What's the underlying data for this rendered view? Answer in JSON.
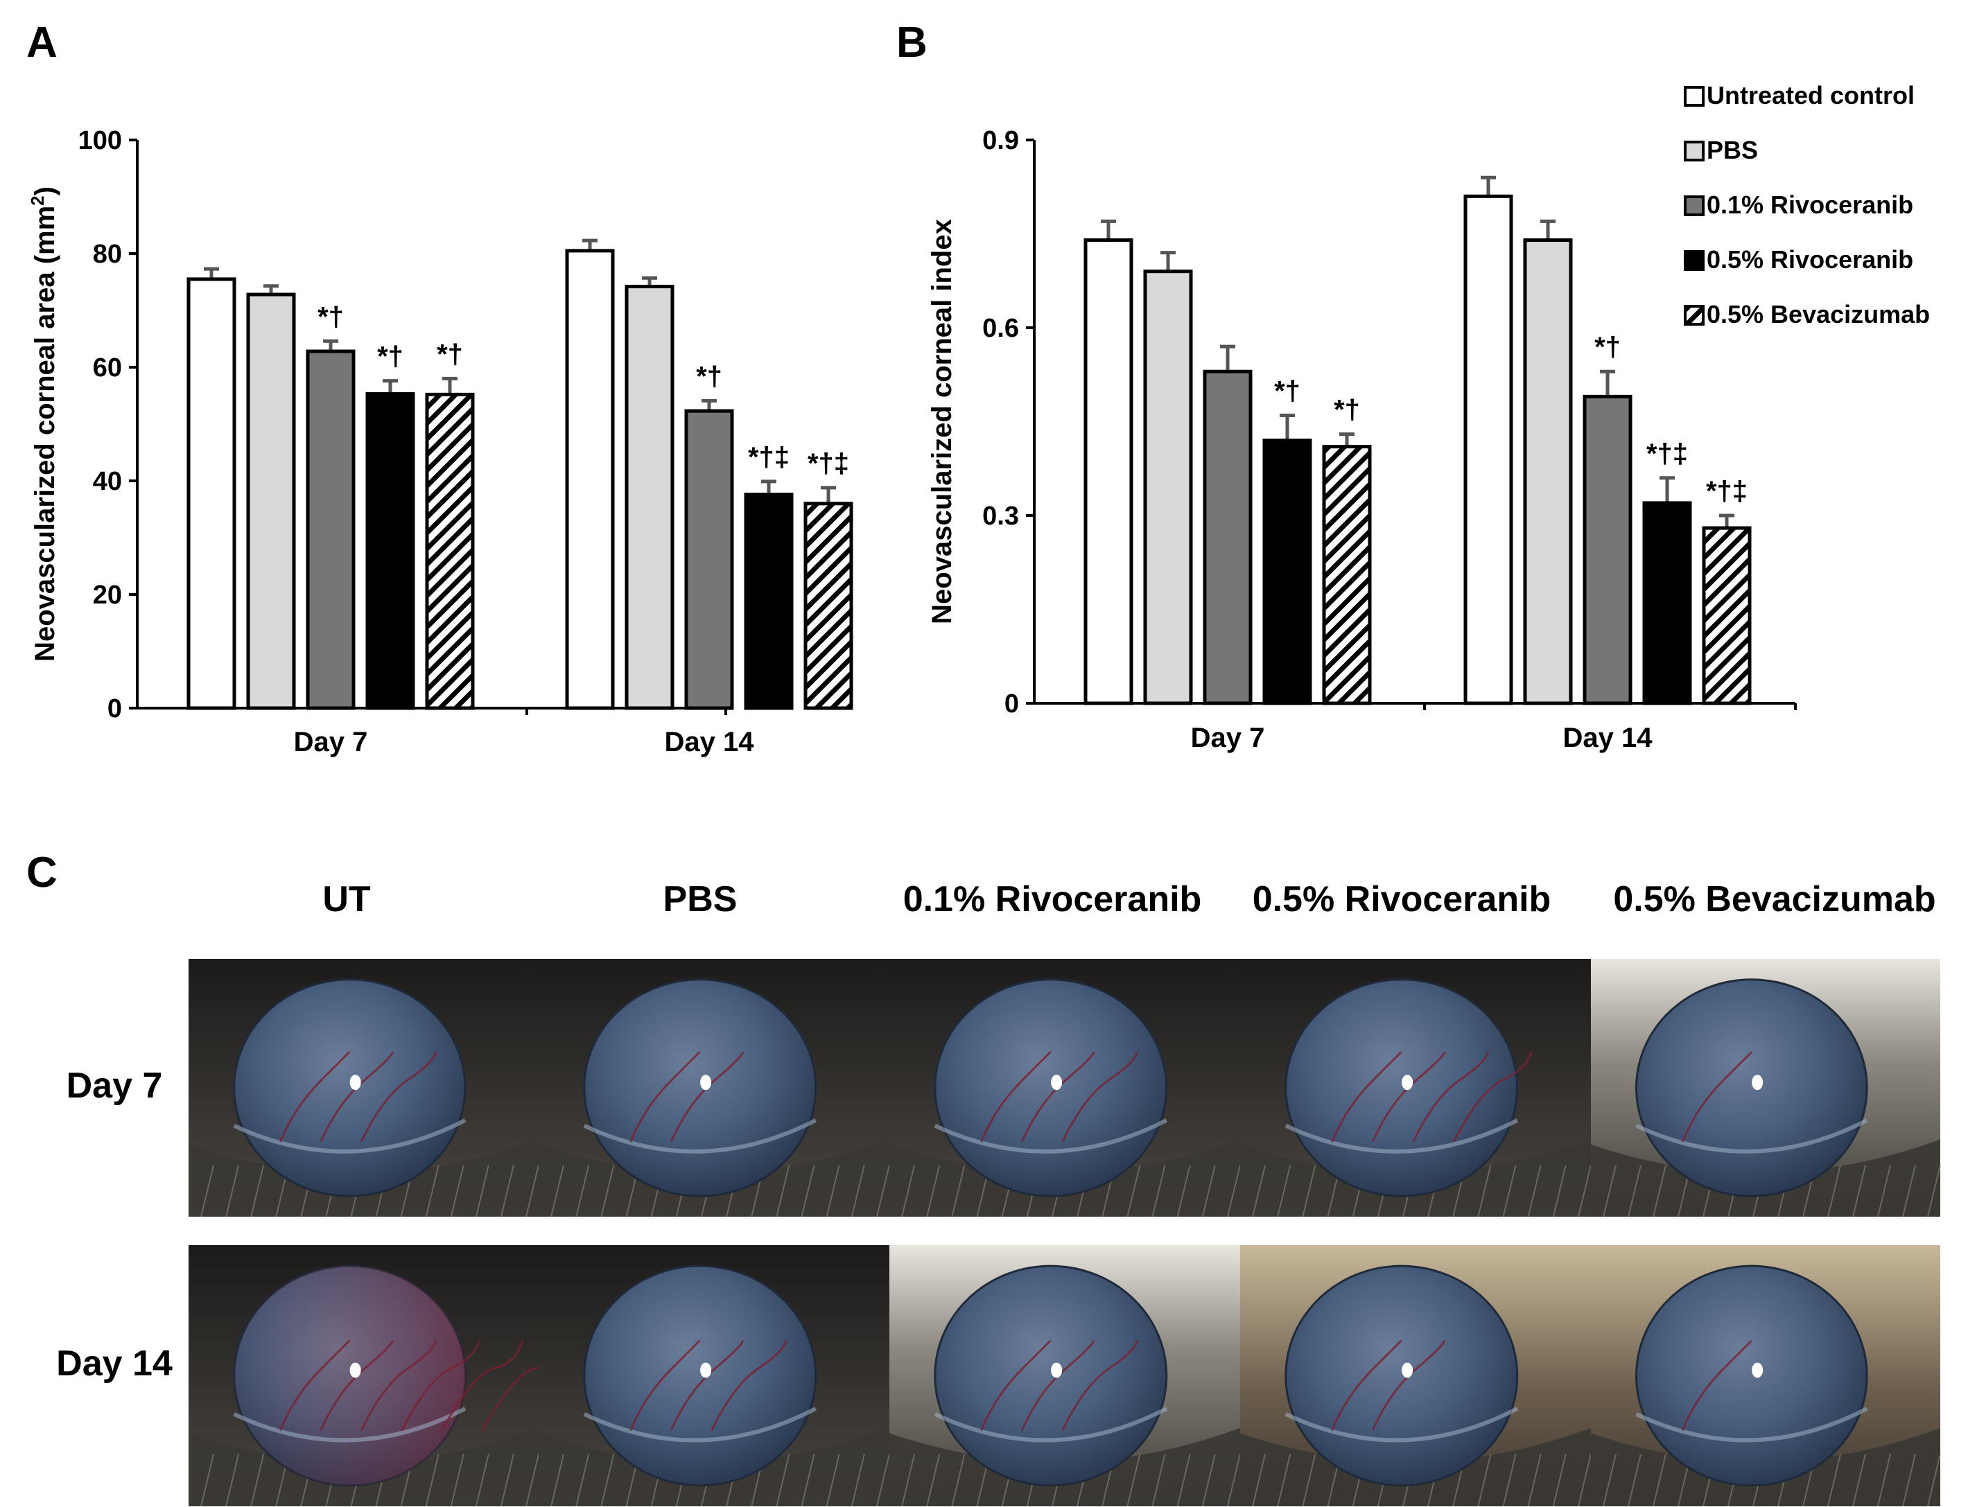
{
  "panels": {
    "a": {
      "letter": "A"
    },
    "b": {
      "letter": "B"
    },
    "c": {
      "letter": "C"
    }
  },
  "legend": [
    {
      "label": "Untreated control",
      "fill": "#ffffff"
    },
    {
      "label": "PBS",
      "fill": "#d9d9d9"
    },
    {
      "label": "0.1% Rivoceranib",
      "fill": "#767676"
    },
    {
      "label": "0.5% Rivoceranib",
      "fill": "#000000"
    },
    {
      "label": "0.5% Bevacizumab",
      "fill": "hatch"
    }
  ],
  "chart_data": [
    {
      "type": "bar",
      "panel": "A",
      "ylabel_main": "Neovascularized corneal area (mm",
      "ylabel_sup": "2",
      "ylabel_end": ")",
      "xlabel": "",
      "categories": [
        "Day 7",
        "Day 14"
      ],
      "ylim": [
        0,
        100
      ],
      "yticks": [
        0,
        20,
        40,
        60,
        80,
        100
      ],
      "grid": false,
      "series": [
        {
          "name": "Untreated control",
          "values": [
            75.5,
            80.5
          ],
          "errors": [
            1.8,
            1.8
          ],
          "marks": [
            "",
            ""
          ]
        },
        {
          "name": "PBS",
          "values": [
            72.8,
            74.2
          ],
          "errors": [
            1.5,
            1.5
          ],
          "marks": [
            "",
            ""
          ]
        },
        {
          "name": "0.1% Rivoceranib",
          "values": [
            62.8,
            52.3
          ],
          "errors": [
            1.8,
            1.8
          ],
          "marks": [
            "*†",
            "*†"
          ]
        },
        {
          "name": "0.5% Rivoceranib",
          "values": [
            55.3,
            37.6
          ],
          "errors": [
            2.3,
            2.3
          ],
          "marks": [
            "*†",
            "*†‡"
          ]
        },
        {
          "name": "0.5% Bevacizumab",
          "values": [
            55.2,
            36.0
          ],
          "errors": [
            2.8,
            2.8
          ],
          "marks": [
            "*†",
            "*†‡"
          ]
        }
      ]
    },
    {
      "type": "bar",
      "panel": "B",
      "ylabel_main": "Neovascularized corneal index",
      "ylabel_sup": "",
      "ylabel_end": "",
      "xlabel": "",
      "categories": [
        "Day 7",
        "Day 14"
      ],
      "ylim": [
        0,
        0.9
      ],
      "yticks": [
        0,
        0.3,
        0.6,
        0.9
      ],
      "grid": false,
      "legend_position": "top-right",
      "series": [
        {
          "name": "Untreated control",
          "values": [
            0.74,
            0.81
          ],
          "errors": [
            0.03,
            0.03
          ],
          "marks": [
            "",
            ""
          ]
        },
        {
          "name": "PBS",
          "values": [
            0.69,
            0.74
          ],
          "errors": [
            0.03,
            0.03
          ],
          "marks": [
            "",
            ""
          ]
        },
        {
          "name": "0.1% Rivoceranib",
          "values": [
            0.53,
            0.49
          ],
          "errors": [
            0.04,
            0.04
          ],
          "marks": [
            "",
            "*†"
          ]
        },
        {
          "name": "0.5% Rivoceranib",
          "values": [
            0.42,
            0.32
          ],
          "errors": [
            0.04,
            0.04
          ],
          "marks": [
            "*†",
            "*†‡"
          ]
        },
        {
          "name": "0.5% Bevacizumab",
          "values": [
            0.41,
            0.28
          ],
          "errors": [
            0.02,
            0.02
          ],
          "marks": [
            "*†",
            "*†‡"
          ]
        }
      ]
    }
  ],
  "images": {
    "columns": [
      "UT",
      "PBS",
      "0.1% Rivoceranib",
      "0.5% Rivoceranib",
      "0.5% Bevacizumab"
    ],
    "rows": [
      "Day 7",
      "Day 14"
    ],
    "vessel_color": "#7a2030",
    "cornea_color": "#3f5873",
    "fur_color": "#3a3733"
  }
}
